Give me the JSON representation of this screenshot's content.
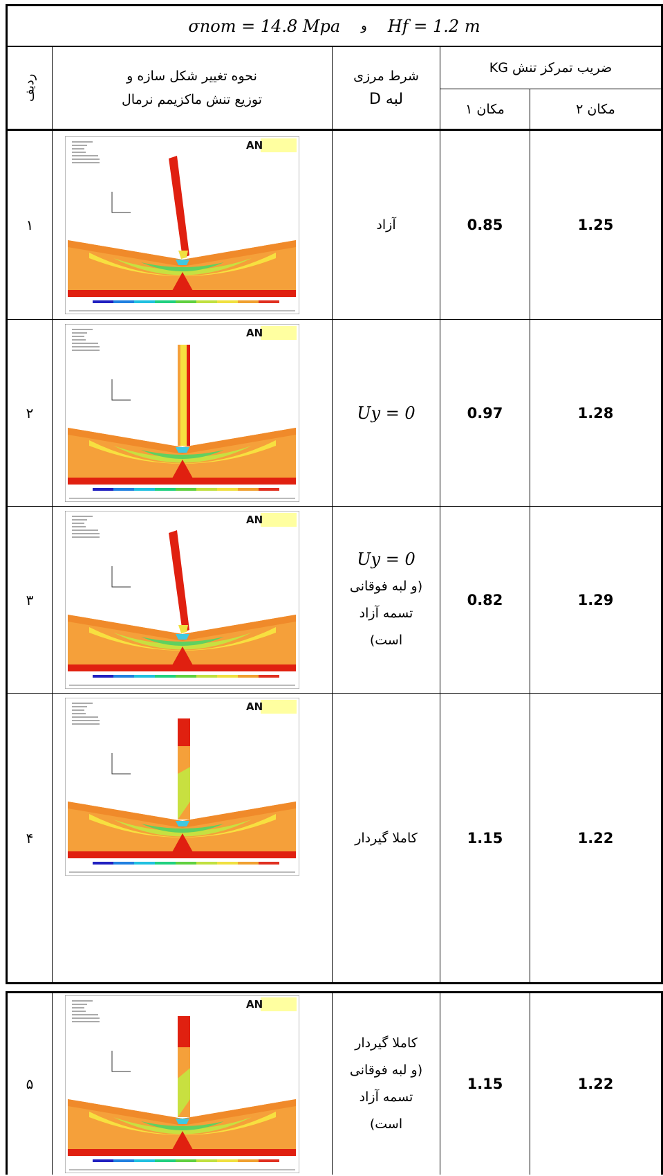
{
  "header": {
    "condition_left": "σnom = 14.8 Mpa",
    "conjunction": "و",
    "condition_right": "Hf = 1.2 m"
  },
  "columns": {
    "row_no": "ردیف",
    "deformation_line1": "نحوه تغییر شکل سازه و",
    "deformation_line2": "توزیع تنش ماکزیمم نرمال",
    "boundary_line1": "شرط مرزی",
    "boundary_line2": "لبه D",
    "kg_title": "ضریب تمرکز تنش KG",
    "location1": "مکان ۱",
    "location2": "مکان ۲"
  },
  "figure_logo": "AN",
  "rows": [
    {
      "no": "۱",
      "boundary_lines": [
        "آزاد"
      ],
      "k1": "0.85",
      "k2": "1.25"
    },
    {
      "no": "۲",
      "boundary_lines": [
        "Uy = 0"
      ],
      "k1": "0.97",
      "k2": "1.28"
    },
    {
      "no": "۳",
      "boundary_lines": [
        "Uy = 0",
        "(و لبه فوقانی",
        "تسمه آزاد",
        "است)"
      ],
      "k1": "0.82",
      "k2": "1.29"
    },
    {
      "no": "۴",
      "boundary_lines": [
        "کاملا گیردار"
      ],
      "k1": "1.15",
      "k2": "1.22"
    },
    {
      "no": "۵",
      "boundary_lines": [
        "کاملا گیردار",
        "(و لبه فوقانی",
        "تسمه آزاد",
        "است)"
      ],
      "k1": "1.15",
      "k2": "1.22"
    }
  ]
}
